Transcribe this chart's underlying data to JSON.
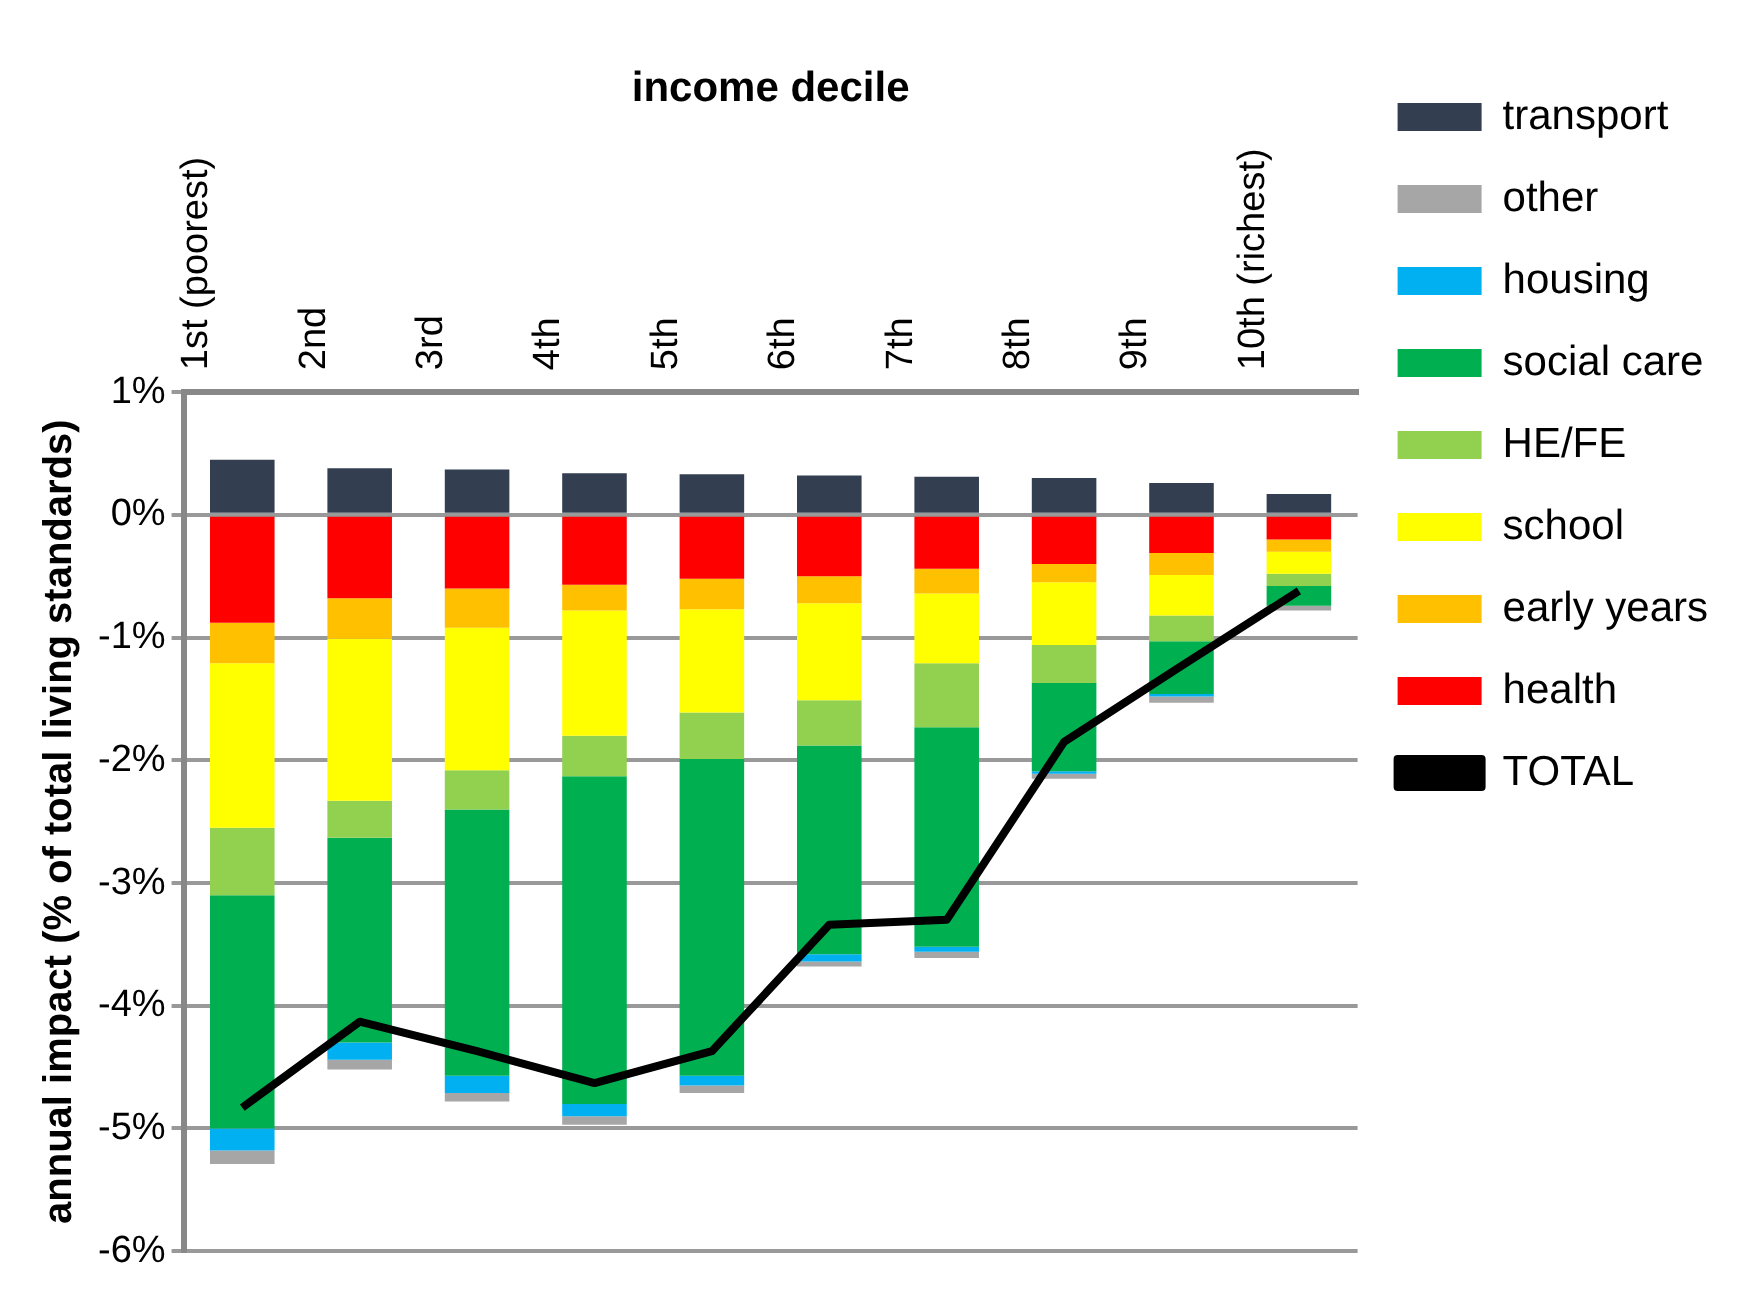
{
  "chart_data": {
    "type": "bar",
    "stacked": true,
    "xlabel": "income decile",
    "ylabel": "annual impact (% of total living standards)",
    "categories": [
      "1st (poorest)",
      "2nd",
      "3rd",
      "4th",
      "5th",
      "6th",
      "7th",
      "8th",
      "9th",
      "10th (richest)"
    ],
    "ylim": [
      -6,
      1
    ],
    "yticks": [
      {
        "value": -6,
        "label": "-6%"
      },
      {
        "value": -5,
        "label": "-5%"
      },
      {
        "value": -4,
        "label": "-4%"
      },
      {
        "value": -3,
        "label": "-3%"
      },
      {
        "value": -2,
        "label": "-2%"
      },
      {
        "value": -1,
        "label": "-1%"
      },
      {
        "value": 0,
        "label": "0%"
      },
      {
        "value": 1,
        "label": "1%"
      }
    ],
    "grid": "y",
    "legend": "right",
    "series": [
      {
        "name": "health",
        "color": "#ff0000",
        "values": [
          -0.88,
          -0.68,
          -0.6,
          -0.57,
          -0.52,
          -0.5,
          -0.44,
          -0.4,
          -0.31,
          -0.2
        ]
      },
      {
        "name": "early years",
        "color": "#ffc000",
        "values": [
          -0.33,
          -0.33,
          -0.32,
          -0.21,
          -0.25,
          -0.22,
          -0.2,
          -0.15,
          -0.18,
          -0.1
        ]
      },
      {
        "name": "school",
        "color": "#ffff00",
        "values": [
          -1.34,
          -1.32,
          -1.16,
          -1.02,
          -0.84,
          -0.79,
          -0.57,
          -0.51,
          -0.33,
          -0.18
        ]
      },
      {
        "name": "HE/FE",
        "color": "#92d050",
        "values": [
          -0.55,
          -0.3,
          -0.32,
          -0.33,
          -0.38,
          -0.37,
          -0.52,
          -0.31,
          -0.21,
          -0.1
        ]
      },
      {
        "name": "social care",
        "color": "#00b050",
        "values": [
          -1.9,
          -1.67,
          -2.17,
          -2.67,
          -2.58,
          -1.7,
          -1.79,
          -0.72,
          -0.43,
          -0.16
        ]
      },
      {
        "name": "housing",
        "color": "#00b0f0",
        "values": [
          -0.18,
          -0.14,
          -0.14,
          -0.1,
          -0.08,
          -0.06,
          -0.04,
          -0.02,
          -0.02,
          0
        ]
      },
      {
        "name": "other",
        "color": "#a6a6a6",
        "values": [
          -0.11,
          -0.08,
          -0.07,
          -0.07,
          -0.06,
          -0.04,
          -0.05,
          -0.04,
          -0.05,
          -0.04
        ]
      },
      {
        "name": "transport",
        "color": "#333f50",
        "values": [
          0.45,
          0.38,
          0.37,
          0.34,
          0.33,
          0.32,
          0.31,
          0.3,
          0.26,
          0.17
        ]
      },
      {
        "name": "TOTAL",
        "type": "line",
        "color": "#000000",
        "marker": "none",
        "values": [
          -4.83,
          -4.13,
          -4.37,
          -4.63,
          -4.37,
          -3.34,
          -3.3,
          -1.85,
          -1.23,
          -0.62
        ]
      }
    ]
  }
}
